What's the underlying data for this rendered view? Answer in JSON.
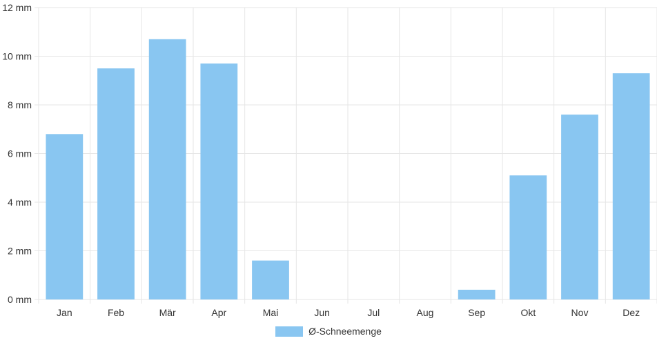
{
  "chart_data": {
    "type": "bar",
    "categories": [
      "Jan",
      "Feb",
      "Mär",
      "Apr",
      "Mai",
      "Jun",
      "Jul",
      "Aug",
      "Sep",
      "Okt",
      "Nov",
      "Dez"
    ],
    "series": [
      {
        "name": "Ø-Schneemenge",
        "values": [
          6.8,
          9.5,
          10.7,
          9.7,
          1.6,
          0,
          0,
          0,
          0.4,
          5.1,
          7.6,
          9.3
        ],
        "color": "#89c6f1"
      }
    ],
    "y_unit": "mm",
    "ylim": [
      0,
      12
    ],
    "yticks": [
      0,
      2,
      4,
      6,
      8,
      10,
      12
    ],
    "grid": true,
    "legend_position": "bottom"
  },
  "colors": {
    "bar": "#89c6f1",
    "grid": "#e6e6e6",
    "axis_text": "#333333"
  }
}
